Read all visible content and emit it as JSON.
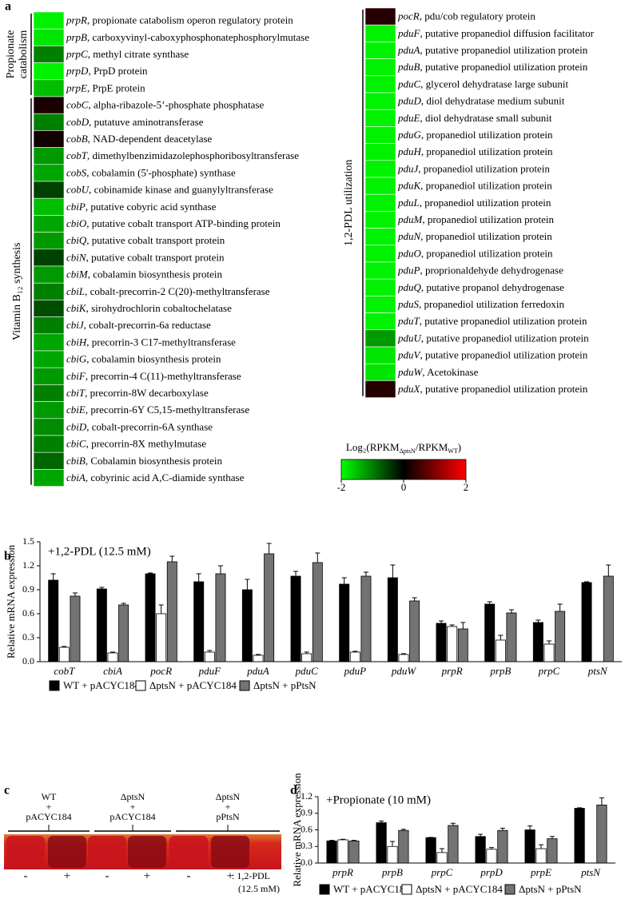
{
  "chart_data": [
    {
      "type": "heatmap",
      "panel_label": "a",
      "columns": [
        {
          "groups": [
            {
              "label": [
                "Propionate",
                "catabolism"
              ],
              "genes": [
                {
                  "gene": "prpR",
                  "description": ", propionate catabolism operon regulatory protein",
                  "value": -1.9
                },
                {
                  "gene": "prpB",
                  "description": ", carboxyvinyl-caboxyphosphonatephosphorylmutase",
                  "value": -1.8
                },
                {
                  "gene": "prpC",
                  "description": ", methyl citrate synthase",
                  "value": -1.0
                },
                {
                  "gene": "prpD",
                  "description": ", PrpD protein",
                  "value": -1.9
                },
                {
                  "gene": "prpE",
                  "description": ", PrpE protein",
                  "value": -1.5
                }
              ]
            },
            {
              "label": [
                "Vitamin B₁₂ synthesis"
              ],
              "genes": [
                {
                  "gene": "cobC",
                  "description": ", alpha-ribazole-5’-phosphate phosphatase",
                  "value": 0.2
                },
                {
                  "gene": "cobD",
                  "description": ", putatuve aminotransferase",
                  "value": -1.0
                },
                {
                  "gene": "cobB",
                  "description": ", NAD-dependent deacetylase",
                  "value": 0.15
                },
                {
                  "gene": "cobT",
                  "description": ", dimethylbenzimidazolephosphoribosyltransferase",
                  "value": -1.2
                },
                {
                  "gene": "cobS",
                  "description": ", cobalamin (5'-phosphate) synthase",
                  "value": -1.3
                },
                {
                  "gene": "cobU",
                  "description": ", cobinamide kinase and guanylyltransferase",
                  "value": -0.5
                },
                {
                  "gene": "cbiP",
                  "description": ", putative cobyric acid synthase",
                  "value": -1.5
                },
                {
                  "gene": "cbiO",
                  "description": ", putative cobalt transport ATP-binding protein",
                  "value": -1.3
                },
                {
                  "gene": "cbiQ",
                  "description": ", putative cobalt transport protein",
                  "value": -1.2
                },
                {
                  "gene": "cbiN",
                  "description": ", putative cobalt transport protein",
                  "value": -0.5
                },
                {
                  "gene": "cbiM",
                  "description": ", cobalamin biosynthesis protein",
                  "value": -1.2
                },
                {
                  "gene": "cbiL",
                  "description": ", cobalt-precorrin-2 C(20)-methyltransferase",
                  "value": -1.0
                },
                {
                  "gene": "cbiK",
                  "description": ", sirohydrochlorin cobaltochelatase",
                  "value": -0.6
                },
                {
                  "gene": "cbiJ",
                  "description": ", cobalt-precorrin-6a reductase",
                  "value": -1.0
                },
                {
                  "gene": "cbiH",
                  "description": ", precorrin-3 C17-methyltransferase",
                  "value": -1.3
                },
                {
                  "gene": "cbiG",
                  "description": ", cobalamin biosynthesis protein",
                  "value": -1.3
                },
                {
                  "gene": "cbiF",
                  "description": ", precorrin-4 C(11)-methyltransferase",
                  "value": -1.2
                },
                {
                  "gene": "cbiT",
                  "description": ", precorrin-8W decarboxylase",
                  "value": -1.0
                },
                {
                  "gene": "cbiE",
                  "description": ", precorrin-6Y C5,15-methyltransferase",
                  "value": -1.2
                },
                {
                  "gene": "cbiD",
                  "description": ", cobalt-precorrin-6A synthase",
                  "value": -1.1
                },
                {
                  "gene": "cbiC",
                  "description": ", precorrin-8X methylmutase",
                  "value": -1.0
                },
                {
                  "gene": "cbiB",
                  "description": ", Cobalamin biosynthesis protein",
                  "value": -0.8
                },
                {
                  "gene": "cbiA",
                  "description": ", cobyrinic acid A,C-diamide synthase",
                  "value": -1.3
                }
              ]
            }
          ]
        },
        {
          "groups": [
            {
              "label": [
                "1,2-PDL utilization"
              ],
              "genes": [
                {
                  "gene": "pocR",
                  "description": ", pdu/cob regulatory protein",
                  "value": 0.3
                },
                {
                  "gene": "pduF",
                  "description": ", putative propanediol diffusion facilitator",
                  "value": -1.9
                },
                {
                  "gene": "pduA",
                  "description": ", putative propanediol utilization protein",
                  "value": -1.9
                },
                {
                  "gene": "pduB",
                  "description": ", putative propanediol utilization protein",
                  "value": -1.9
                },
                {
                  "gene": "pduC",
                  "description": ", glycerol dehydratase large subunit",
                  "value": -1.9
                },
                {
                  "gene": "pduD",
                  "description": ", diol dehydratase medium subunit",
                  "value": -1.9
                },
                {
                  "gene": "pduE",
                  "description": ", diol dehydratase small subunit",
                  "value": -1.9
                },
                {
                  "gene": "pduG",
                  "description": ", propanediol utilization protein",
                  "value": -1.9
                },
                {
                  "gene": "pduH",
                  "description": ", propanediol utilization protein",
                  "value": -1.9
                },
                {
                  "gene": "pduJ",
                  "description": ", propanediol utilization protein",
                  "value": -1.9
                },
                {
                  "gene": "pduK",
                  "description": ", propanediol utilization protein",
                  "value": -1.9
                },
                {
                  "gene": "pduL",
                  "description": ", propanediol utilization protein",
                  "value": -1.9
                },
                {
                  "gene": "pduM",
                  "description": ", propanediol utilization protein",
                  "value": -1.9
                },
                {
                  "gene": "pduN",
                  "description": ", propanediol utilization protein",
                  "value": -1.9
                },
                {
                  "gene": "pduO",
                  "description": ", propanediol utilization protein",
                  "value": -1.9
                },
                {
                  "gene": "pduP",
                  "description": ", proprionaldehyde dehydrogenase",
                  "value": -1.9
                },
                {
                  "gene": "pduQ",
                  "description": ", putative propanol dehydrogenase",
                  "value": -1.9
                },
                {
                  "gene": "pduS",
                  "description": ", propanediol utilization ferredoxin",
                  "value": -1.9
                },
                {
                  "gene": "pduT",
                  "description": ", putative propanediol utilization protein",
                  "value": -1.9
                },
                {
                  "gene": "pduU",
                  "description": ", putative propanediol utilization protein",
                  "value": -1.2
                },
                {
                  "gene": "pduV",
                  "description": ", putative propanediol utilization protein",
                  "value": -1.8
                },
                {
                  "gene": "pduW",
                  "description": ", Acetokinase",
                  "value": -1.8
                },
                {
                  "gene": "pduX",
                  "description": ", putative propanediol utilization protein",
                  "value": 0.3
                }
              ]
            }
          ]
        }
      ],
      "colorbar": {
        "title": [
          "Log₂(RPKM",
          "ΔptsN",
          "/RPKM",
          "WT",
          ")"
        ],
        "lim": [
          -2,
          2
        ],
        "ticks": [
          -2,
          0,
          2
        ],
        "colors": [
          "#00ff00",
          "#000000",
          "#ff0000"
        ]
      }
    },
    {
      "type": "bar",
      "panel_label": "b",
      "annotation": "+1,2-PDL (12.5 mM)",
      "y_label": "Relative mRNA expression",
      "categories": [
        "cobT",
        "cbiA",
        "pocR",
        "pduF",
        "pduA",
        "pduC",
        "pduP",
        "pduW",
        "prpR",
        "prpB",
        "prpC",
        "ptsN"
      ],
      "series": [
        {
          "name": "WT + pACYC184",
          "color": "#000000",
          "values": [
            1.02,
            0.91,
            1.1,
            1.0,
            0.9,
            1.07,
            0.97,
            1.05,
            0.48,
            0.72,
            0.49,
            0.99
          ],
          "errors": [
            0.08,
            0.02,
            0.01,
            0.1,
            0.13,
            0.06,
            0.08,
            0.16,
            0.03,
            0.03,
            0.03,
            0.01
          ]
        },
        {
          "name": "ΔptsN + pACYC184",
          "color": "#ffffff",
          "values": [
            0.18,
            0.11,
            0.6,
            0.12,
            0.08,
            0.1,
            0.12,
            0.09,
            0.44,
            0.27,
            0.22,
            0
          ],
          "errors": [
            0.01,
            0.01,
            0.11,
            0.02,
            0.01,
            0.02,
            0.01,
            0.01,
            0.02,
            0.06,
            0.04,
            0
          ]
        },
        {
          "name": "ΔptsN + pPtsN",
          "color": "#737373",
          "values": [
            0.82,
            0.71,
            1.25,
            1.1,
            1.35,
            1.24,
            1.07,
            0.76,
            0.41,
            0.61,
            0.63,
            1.07
          ],
          "errors": [
            0.04,
            0.02,
            0.07,
            0.1,
            0.13,
            0.12,
            0.05,
            0.04,
            0.08,
            0.04,
            0.09,
            0.14
          ]
        }
      ],
      "ylim": [
        0,
        1.5
      ],
      "yticks": [
        {
          "value": 0,
          "label": "0.0"
        },
        0.3,
        0.6,
        0.9,
        1.2,
        1.5
      ]
    },
    {
      "type": "bar",
      "panel_label": "d",
      "annotation": "+Propionate (10 mM)",
      "y_label": "Relative mRNA expression",
      "categories": [
        "prpR",
        "prpB",
        "prpC",
        "prpD",
        "prpE",
        "ptsN"
      ],
      "series": [
        {
          "name": "WT + pACYC184",
          "color": "#000000",
          "values": [
            0.4,
            0.73,
            0.46,
            0.48,
            0.6,
            0.99
          ],
          "errors": [
            0.01,
            0.03,
            0.005,
            0.04,
            0.07,
            0.01
          ]
        },
        {
          "name": "ΔptsN + pACYC184",
          "color": "#ffffff",
          "values": [
            0.42,
            0.3,
            0.19,
            0.25,
            0.26,
            0
          ],
          "errors": [
            0.01,
            0.09,
            0.07,
            0.03,
            0.07,
            0
          ]
        },
        {
          "name": "ΔptsN + pPtsN",
          "color": "#737373",
          "values": [
            0.4,
            0.59,
            0.68,
            0.59,
            0.44,
            1.05
          ],
          "errors": [
            0.01,
            0.02,
            0.04,
            0.04,
            0.04,
            0.13
          ]
        }
      ],
      "ylim": [
        0,
        1.2
      ],
      "yticks": [
        {
          "value": 0,
          "label": "0.0"
        },
        0.3,
        0.6,
        0.9,
        1.2
      ]
    }
  ],
  "photo_panel": {
    "panel_label": "c",
    "samples": [
      [
        "WT",
        "+",
        "pACYC184"
      ],
      [
        "ΔptsN",
        "+",
        "pACYC184"
      ],
      [
        "ΔptsN",
        "+",
        "pPtsN"
      ]
    ],
    "signs": [
      "-",
      "+",
      "-",
      "+",
      "-",
      "+"
    ],
    "condition": [
      ": 1,2-PDL",
      "(12.5 mM)"
    ]
  }
}
